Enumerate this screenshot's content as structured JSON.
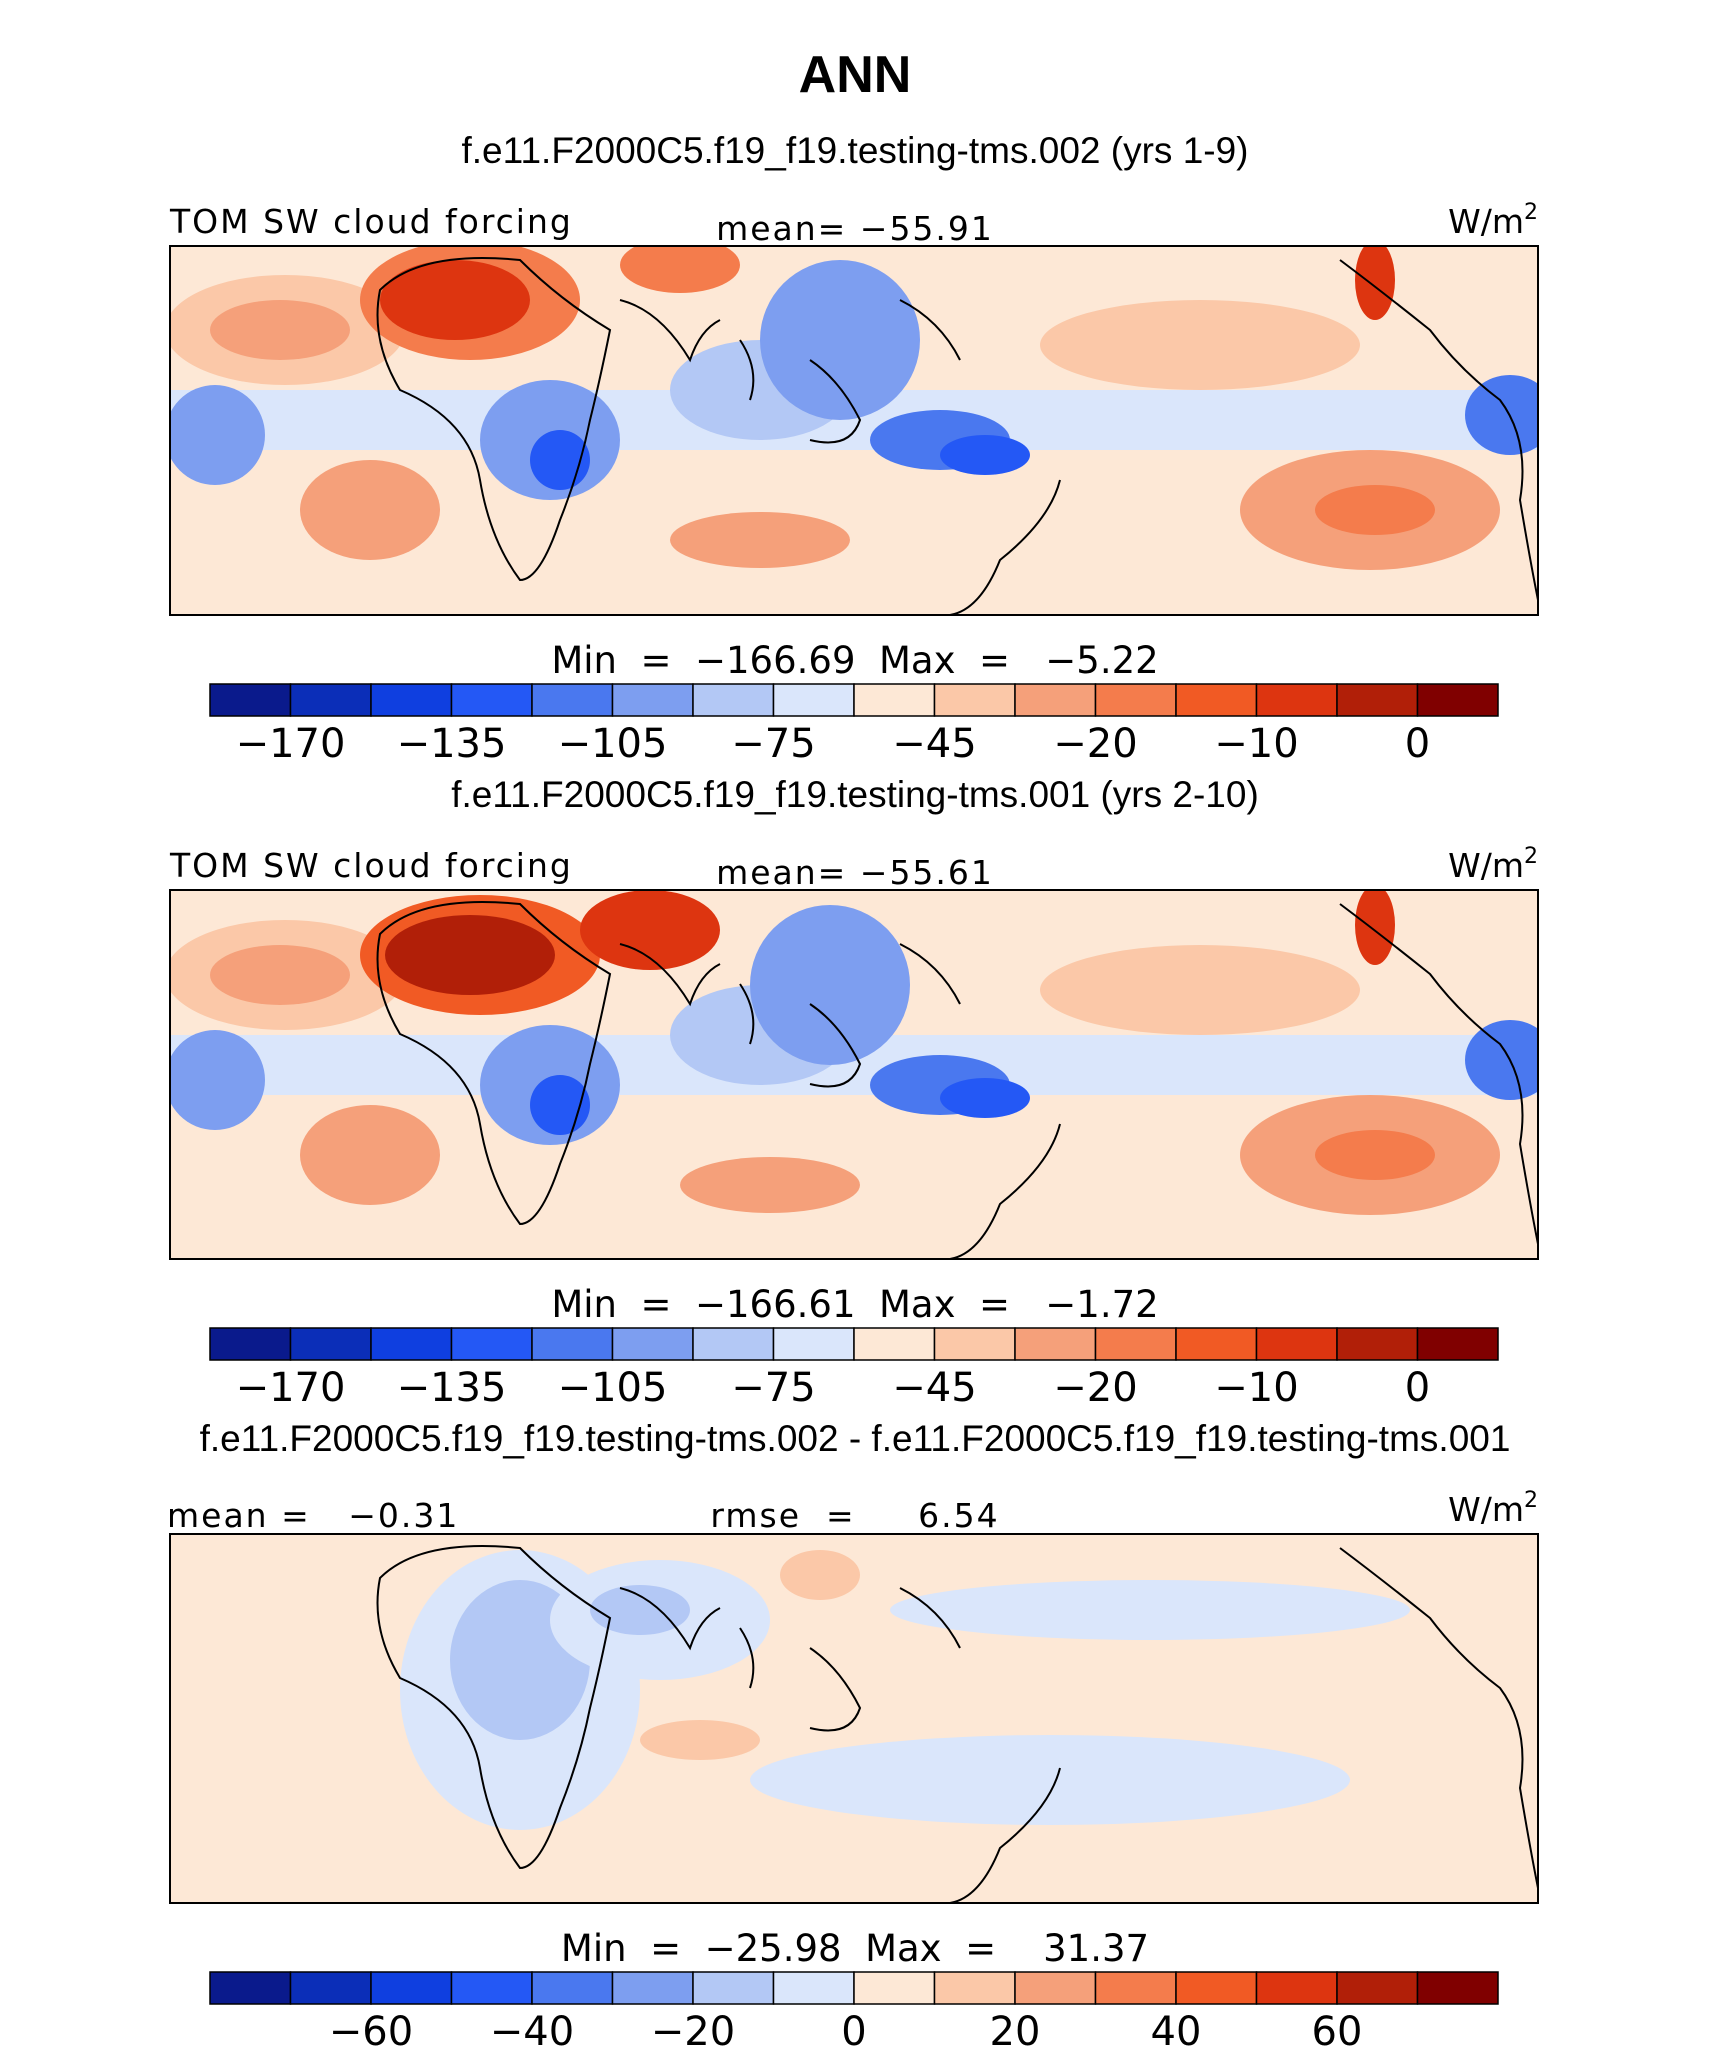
{
  "chart_data": {
    "type": "heatmap",
    "title": "ANN",
    "units": "W/m",
    "units_sup": "2",
    "panels": [
      {
        "id": "test",
        "case_title": "f.e11.F2000C5.f19_f19.testing-tms.002 (yrs 1-9)",
        "variable_label": "TOM SW cloud forcing",
        "center_label": "mean= −55.91",
        "minmax_label": "Min  =  −166.69  Max  =   −5.22",
        "colorbar_ticks": [
          "−170",
          "−135",
          "−105",
          "−75",
          "−45",
          "−20",
          "−10",
          "0"
        ],
        "colorbar_tick_bounds": [
          1,
          3,
          5,
          7,
          9,
          11,
          13,
          15
        ],
        "colors": [
          "#0a1a8c",
          "#0b2eb8",
          "#0f3fe0",
          "#2458f5",
          "#4a78ef",
          "#7d9ef0",
          "#b3c8f5",
          "#dae6fb",
          "#fde8d6",
          "#fbc8a8",
          "#f5a07a",
          "#f47c4c",
          "#f15a24",
          "#dd3510",
          "#b11f08",
          "#800000"
        ]
      },
      {
        "id": "ref",
        "case_title": "f.e11.F2000C5.f19_f19.testing-tms.001 (yrs 2-10)",
        "variable_label": "TOM SW cloud forcing",
        "center_label": "mean= −55.61",
        "minmax_label": "Min  =  −166.61  Max  =   −1.72",
        "colorbar_ticks": [
          "−170",
          "−135",
          "−105",
          "−75",
          "−45",
          "−20",
          "−10",
          "0"
        ],
        "colorbar_tick_bounds": [
          1,
          3,
          5,
          7,
          9,
          11,
          13,
          15
        ],
        "colors": [
          "#0a1a8c",
          "#0b2eb8",
          "#0f3fe0",
          "#2458f5",
          "#4a78ef",
          "#7d9ef0",
          "#b3c8f5",
          "#dae6fb",
          "#fde8d6",
          "#fbc8a8",
          "#f5a07a",
          "#f47c4c",
          "#f15a24",
          "#dd3510",
          "#b11f08",
          "#800000"
        ]
      },
      {
        "id": "diff",
        "case_title": "f.e11.F2000C5.f19_f19.testing-tms.002 - f.e11.F2000C5.f19_f19.testing-tms.001",
        "variable_label": "mean =   −0.31",
        "center_label": "rmse  =     6.54",
        "minmax_label": "Min  =  −25.98  Max  =    31.37",
        "colorbar_ticks": [
          "−60",
          "−40",
          "−20",
          "0",
          "20",
          "40",
          "60"
        ],
        "colorbar_tick_bounds": [
          2,
          4,
          6,
          8,
          10,
          12,
          14
        ],
        "colors": [
          "#0a1a8c",
          "#0b2eb8",
          "#0f3fe0",
          "#2458f5",
          "#4a78ef",
          "#7d9ef0",
          "#b3c8f5",
          "#dae6fb",
          "#fde8d6",
          "#fbc8a8",
          "#f5a07a",
          "#f47c4c",
          "#f15a24",
          "#dd3510",
          "#b11f08",
          "#800000"
        ]
      }
    ]
  }
}
